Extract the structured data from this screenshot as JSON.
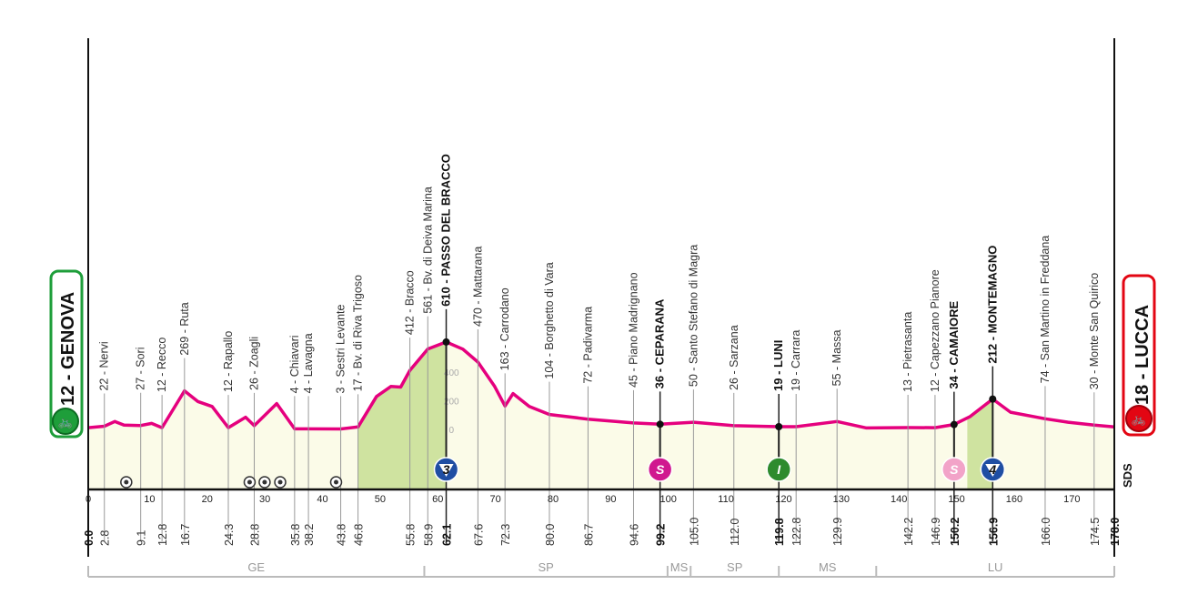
{
  "chart_data": {
    "type": "area",
    "xlim": [
      0,
      178
    ],
    "x_ticks": [
      0,
      10,
      20,
      30,
      40,
      50,
      60,
      70,
      80,
      90,
      100,
      110,
      120,
      130,
      140,
      150,
      160,
      170
    ],
    "elevation_ticks": [
      "0",
      "200",
      "400"
    ],
    "grid": true,
    "colors": {
      "profile_line": "#e5007e",
      "profile_fill": "#fbfbe8",
      "climb_fill": "#cfe3a0",
      "start": "#1e9e3a",
      "finish": "#e30613",
      "kom": "#1f4ea3",
      "sprint": "#d0188f",
      "intermediate": "#2e8b2e",
      "sprint_light": "#f2a3c8"
    },
    "start": {
      "label": "12 - GENOVA",
      "elevation": 12
    },
    "finish": {
      "label": "18 - LUCCA",
      "elevation": 18
    },
    "logo": "SDS",
    "profile": [
      [
        0,
        12
      ],
      [
        2.8,
        22
      ],
      [
        4.6,
        55
      ],
      [
        6.2,
        30
      ],
      [
        9.1,
        27
      ],
      [
        11,
        42
      ],
      [
        12.8,
        12
      ],
      [
        16.7,
        269
      ],
      [
        19,
        195
      ],
      [
        21.5,
        160
      ],
      [
        24.3,
        12
      ],
      [
        27.3,
        85
      ],
      [
        28.8,
        26
      ],
      [
        32.7,
        180
      ],
      [
        35.8,
        4
      ],
      [
        38.2,
        4
      ],
      [
        43.8,
        3
      ],
      [
        46.8,
        17
      ],
      [
        50,
        230
      ],
      [
        52.5,
        300
      ],
      [
        54.2,
        295
      ],
      [
        55.8,
        412
      ],
      [
        58.9,
        561
      ],
      [
        62.1,
        610
      ],
      [
        65,
        560
      ],
      [
        67.6,
        470
      ],
      [
        70.5,
        300
      ],
      [
        72.3,
        163
      ],
      [
        73.7,
        250
      ],
      [
        76.5,
        160
      ],
      [
        80,
        104
      ],
      [
        86.7,
        72
      ],
      [
        94.6,
        45
      ],
      [
        99.2,
        36
      ],
      [
        105,
        50
      ],
      [
        112,
        26
      ],
      [
        119.8,
        19
      ],
      [
        122.8,
        19
      ],
      [
        129.9,
        55
      ],
      [
        135,
        10
      ],
      [
        142.2,
        13
      ],
      [
        146.9,
        12
      ],
      [
        150.2,
        34
      ],
      [
        153,
        90
      ],
      [
        156.9,
        212
      ],
      [
        160,
        120
      ],
      [
        166,
        74
      ],
      [
        170,
        50
      ],
      [
        174.5,
        30
      ],
      [
        178,
        18
      ]
    ],
    "climb_sections": [
      [
        46.8,
        62.1
      ],
      [
        152.5,
        156.9
      ]
    ],
    "waypoints": [
      {
        "label": "22 - Nervi",
        "km": "2.8"
      },
      {
        "label": "27 - Sori",
        "km": "9.1"
      },
      {
        "label": "12 - Recco",
        "km": "12.8"
      },
      {
        "label": "269 - Ruta",
        "km": "16.7"
      },
      {
        "label": "12 - Rapallo",
        "km": "24.3"
      },
      {
        "label": "26 - Zoagli",
        "km": "28.8"
      },
      {
        "label": "4 - Chiavari",
        "km": "35.8"
      },
      {
        "label": "4 - Lavagna",
        "km": "38.2"
      },
      {
        "label": "3 - Sestri Levante",
        "km": "43.8"
      },
      {
        "label": "17 - Bv. di Riva Trigoso",
        "km": "46.8"
      },
      {
        "label": "412 - Bracco",
        "km": "55.8"
      },
      {
        "label": "561 - Bv. di Deiva Marina",
        "km": "58.9"
      },
      {
        "label": "610 - PASSO DEL BRACCO",
        "km": "62.1",
        "bold": true,
        "marker": "kom",
        "marker_text": "3"
      },
      {
        "label": "470 - Mattarana",
        "km": "67.6"
      },
      {
        "label": "163 - Carrodano",
        "km": "72.3"
      },
      {
        "label": "104 - Borghetto di Vara",
        "km": "80.0"
      },
      {
        "label": "72 - Padivarma",
        "km": "86.7"
      },
      {
        "label": "45 - Piano Madrignano",
        "km": "94.6"
      },
      {
        "label": "36 - CEPARANA",
        "km": "99.2",
        "bold": true,
        "marker": "sprint",
        "marker_text": "S"
      },
      {
        "label": "50 - Santo Stefano di Magra",
        "km": "105.0"
      },
      {
        "label": "26 - Sarzana",
        "km": "112.0"
      },
      {
        "label": "19 - LUNI",
        "km": "119.8",
        "bold": true,
        "marker": "intermediate",
        "marker_text": "I"
      },
      {
        "label": "19 - Carrara",
        "km": "122.8"
      },
      {
        "label": "55 - Massa",
        "km": "129.9"
      },
      {
        "label": "13 - Pietrasanta",
        "km": "142.2"
      },
      {
        "label": "12 - Capezzano Pianore",
        "km": "146.9"
      },
      {
        "label": "34 - CAMAIORE",
        "km": "150.2",
        "bold": true,
        "marker": "sprint_light",
        "marker_text": "S"
      },
      {
        "label": "212 - MONTEMAGNO",
        "km": "156.9",
        "bold": true,
        "marker": "kom",
        "marker_text": "4"
      },
      {
        "label": "74 - San Martino in Freddana",
        "km": "166.0"
      },
      {
        "label": "30 - Monte San Quirico",
        "km": "174.5"
      }
    ],
    "km_start": "0.0",
    "km_end": "178.0",
    "tunnels_km": [
      6.6,
      28,
      30.6,
      33.3,
      43
    ],
    "provinces": [
      {
        "label": "GE",
        "from": 0,
        "to": 58.3
      },
      {
        "label": "SP",
        "from": 58.3,
        "to": 100.5
      },
      {
        "label": "MS",
        "from": 100.5,
        "to": 104.5
      },
      {
        "label": "SP",
        "from": 104.5,
        "to": 119.8
      },
      {
        "label": "MS",
        "from": 119.8,
        "to": 136.7
      },
      {
        "label": "LU",
        "from": 136.7,
        "to": 178
      }
    ]
  }
}
